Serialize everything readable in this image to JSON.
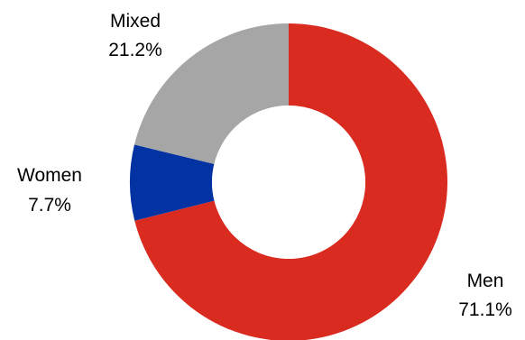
{
  "chart_data": {
    "type": "pie",
    "variant": "donut",
    "slices": [
      {
        "name": "Men",
        "value": 71.1,
        "value_label": "71.1%",
        "color": "#d92b20"
      },
      {
        "name": "Women",
        "value": 7.7,
        "value_label": "7.7%",
        "color": "#0333a3"
      },
      {
        "name": "Mixed",
        "value": 21.2,
        "value_label": "21.2%",
        "color": "#a6a6a6"
      }
    ],
    "start": "12 o'clock",
    "direction": "clockwise"
  }
}
